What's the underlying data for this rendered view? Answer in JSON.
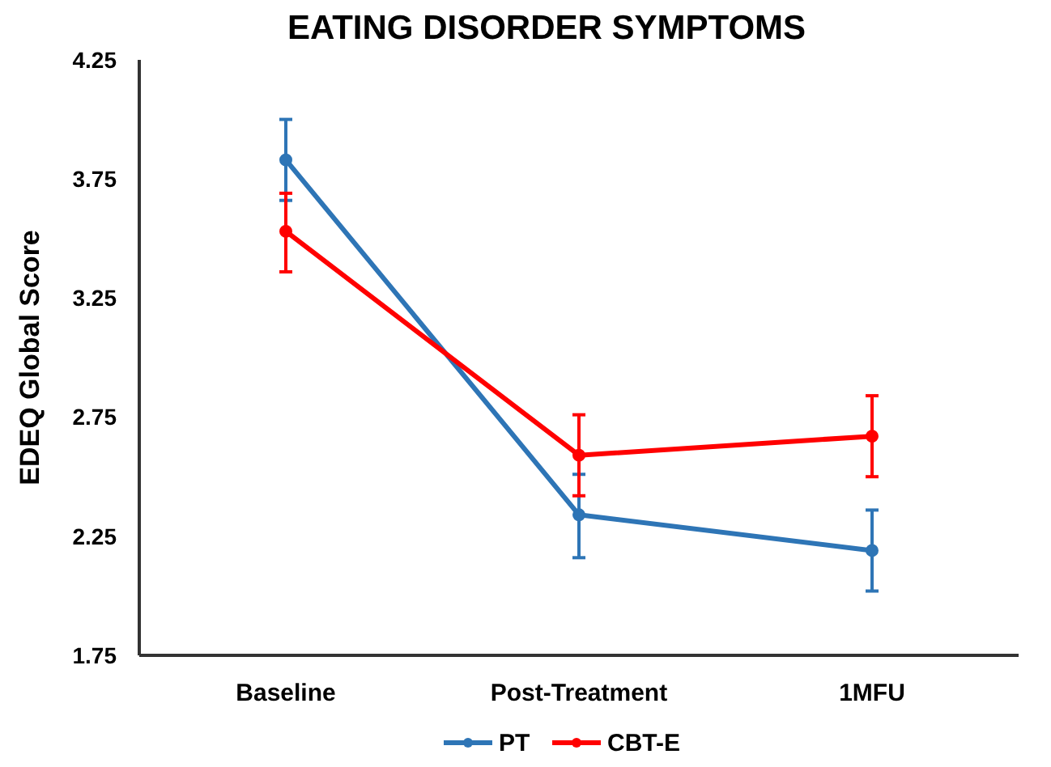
{
  "chart_data": {
    "type": "line",
    "title": "EATING DISORDER SYMPTOMS",
    "ylabel": "EDEQ Global Score",
    "categories": [
      "Baseline",
      "Post-Treatment",
      "1MFU"
    ],
    "series": [
      {
        "name": "PT",
        "color": "#2e75b6",
        "values": [
          3.83,
          2.34,
          2.19
        ],
        "errors": [
          [
            3.66,
            4.0
          ],
          [
            2.16,
            2.51
          ],
          [
            2.02,
            2.36
          ]
        ]
      },
      {
        "name": "CBT-E",
        "color": "#ff0000",
        "values": [
          3.53,
          2.59,
          2.67
        ],
        "errors": [
          [
            3.36,
            3.69
          ],
          [
            2.42,
            2.76
          ],
          [
            2.5,
            2.84
          ]
        ]
      }
    ],
    "ylim": [
      1.75,
      4.25
    ],
    "yticks": [
      1.75,
      2.25,
      2.75,
      3.25,
      3.75,
      4.25
    ],
    "grid": false,
    "legend": "bottom",
    "marker": "circle",
    "line_style": "solid"
  }
}
